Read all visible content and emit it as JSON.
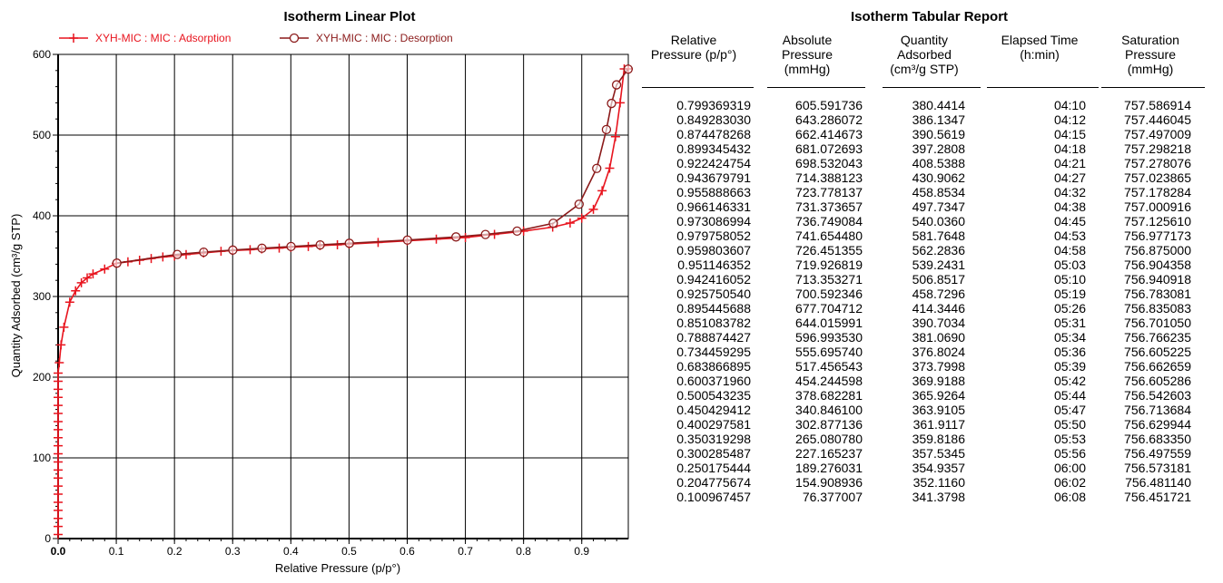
{
  "chart_data": {
    "type": "line",
    "title": "Isotherm Linear Plot",
    "xlabel": "Relative Pressure (p/p°)",
    "ylabel": "Quantity Adsorbed (cm³/g STP)",
    "xlim": [
      0.0,
      0.98
    ],
    "ylim": [
      0,
      600
    ],
    "xticks": [
      "0.0",
      "0.1",
      "0.2",
      "0.3",
      "0.4",
      "0.5",
      "0.6",
      "0.7",
      "0.8",
      "0.9"
    ],
    "xtick_values": [
      0.0,
      0.1,
      0.2,
      0.3,
      0.4,
      0.5,
      0.6,
      0.7,
      0.8,
      0.9
    ],
    "yticks": [
      "0",
      "100",
      "200",
      "300",
      "400",
      "500",
      "600"
    ],
    "ytick_values": [
      0,
      100,
      200,
      300,
      400,
      500,
      600
    ],
    "grid": true,
    "legend_position": "top",
    "series": [
      {
        "name": "XYH-MIC : MIC : Adsorption",
        "marker": "plus",
        "color": "#e8141e",
        "x": [
          0.0,
          0.0,
          0.0,
          0.0,
          0.0,
          0.0,
          0.0,
          0.0,
          0.0,
          0.0,
          0.0,
          0.0,
          0.0,
          0.0,
          0.0,
          0.0,
          0.0,
          0.0,
          0.0,
          0.0,
          0.0,
          0.002,
          0.005,
          0.01,
          0.02,
          0.03,
          0.04,
          0.05,
          0.06,
          0.08,
          0.1,
          0.12,
          0.14,
          0.16,
          0.18,
          0.2,
          0.22,
          0.25,
          0.28,
          0.3,
          0.33,
          0.35,
          0.38,
          0.4,
          0.43,
          0.45,
          0.48,
          0.5,
          0.55,
          0.6,
          0.65,
          0.7,
          0.75,
          0.8,
          0.85,
          0.88,
          0.9,
          0.92,
          0.935,
          0.948,
          0.958,
          0.966,
          0.973,
          0.98
        ],
        "y": [
          5,
          15,
          25,
          35,
          45,
          55,
          65,
          75,
          85,
          95,
          105,
          115,
          125,
          135,
          145,
          155,
          165,
          175,
          185,
          195,
          205,
          218,
          240,
          262,
          293,
          307,
          317,
          323,
          328,
          334,
          341,
          343,
          345,
          347,
          349,
          350,
          352,
          354,
          356,
          357,
          358,
          359,
          360,
          361,
          362,
          363,
          364,
          365,
          367,
          369,
          371,
          373,
          377,
          381,
          386,
          391,
          397,
          408,
          431,
          459,
          498,
          540,
          582,
          582
        ]
      },
      {
        "name": "XYH-MIC : MIC : Desorption",
        "marker": "circle",
        "color": "#8b1a1a",
        "x": [
          0.979758052,
          0.959803607,
          0.951146352,
          0.942416052,
          0.92575054,
          0.895445688,
          0.851083782,
          0.788874427,
          0.734459295,
          0.683866895,
          0.60037196,
          0.500543235,
          0.450429412,
          0.400297581,
          0.350319298,
          0.300285487,
          0.250175444,
          0.204775674,
          0.100967457
        ],
        "y": [
          581.7648,
          562.2836,
          539.2431,
          506.8517,
          458.7296,
          414.3446,
          390.7034,
          381.069,
          376.8024,
          373.7998,
          369.9188,
          365.9264,
          363.9105,
          361.9117,
          359.8186,
          357.5345,
          354.9357,
          352.116,
          341.3798
        ]
      }
    ]
  },
  "report": {
    "title": "Isotherm Tabular Report",
    "columns": [
      "Relative\nPressure (p/p°)",
      "Absolute\nPressure\n(mmHg)",
      "Quantity\nAdsorbed\n(cm³/g STP)",
      "Elapsed Time\n(h:min)",
      "Saturation\nPressure\n(mmHg)"
    ],
    "rows": [
      [
        "0.799369319",
        "605.591736",
        "380.4414",
        "04:10",
        "757.586914"
      ],
      [
        "0.849283030",
        "643.286072",
        "386.1347",
        "04:12",
        "757.446045"
      ],
      [
        "0.874478268",
        "662.414673",
        "390.5619",
        "04:15",
        "757.497009"
      ],
      [
        "0.899345432",
        "681.072693",
        "397.2808",
        "04:18",
        "757.298218"
      ],
      [
        "0.922424754",
        "698.532043",
        "408.5388",
        "04:21",
        "757.278076"
      ],
      [
        "0.943679791",
        "714.388123",
        "430.9062",
        "04:27",
        "757.023865"
      ],
      [
        "0.955888663",
        "723.778137",
        "458.8534",
        "04:32",
        "757.178284"
      ],
      [
        "0.966146331",
        "731.373657",
        "497.7347",
        "04:38",
        "757.000916"
      ],
      [
        "0.973086994",
        "736.749084",
        "540.0360",
        "04:45",
        "757.125610"
      ],
      [
        "0.979758052",
        "741.654480",
        "581.7648",
        "04:53",
        "756.977173"
      ],
      [
        "0.959803607",
        "726.451355",
        "562.2836",
        "04:58",
        "756.875000"
      ],
      [
        "0.951146352",
        "719.926819",
        "539.2431",
        "05:03",
        "756.904358"
      ],
      [
        "0.942416052",
        "713.353271",
        "506.8517",
        "05:10",
        "756.940918"
      ],
      [
        "0.925750540",
        "700.592346",
        "458.7296",
        "05:19",
        "756.783081"
      ],
      [
        "0.895445688",
        "677.704712",
        "414.3446",
        "05:26",
        "756.835083"
      ],
      [
        "0.851083782",
        "644.015991",
        "390.7034",
        "05:31",
        "756.701050"
      ],
      [
        "0.788874427",
        "596.993530",
        "381.0690",
        "05:34",
        "756.766235"
      ],
      [
        "0.734459295",
        "555.695740",
        "376.8024",
        "05:36",
        "756.605225"
      ],
      [
        "0.683866895",
        "517.456543",
        "373.7998",
        "05:39",
        "756.662659"
      ],
      [
        "0.600371960",
        "454.244598",
        "369.9188",
        "05:42",
        "756.605286"
      ],
      [
        "0.500543235",
        "378.682281",
        "365.9264",
        "05:44",
        "756.542603"
      ],
      [
        "0.450429412",
        "340.846100",
        "363.9105",
        "05:47",
        "756.713684"
      ],
      [
        "0.400297581",
        "302.877136",
        "361.9117",
        "05:50",
        "756.629944"
      ],
      [
        "0.350319298",
        "265.080780",
        "359.8186",
        "05:53",
        "756.683350"
      ],
      [
        "0.300285487",
        "227.165237",
        "357.5345",
        "05:56",
        "756.497559"
      ],
      [
        "0.250175444",
        "189.276031",
        "354.9357",
        "06:00",
        "756.573181"
      ],
      [
        "0.204775674",
        "154.908936",
        "352.1160",
        "06:02",
        "756.481140"
      ],
      [
        "0.100967457",
        "76.377007",
        "341.3798",
        "06:08",
        "756.451721"
      ]
    ]
  }
}
